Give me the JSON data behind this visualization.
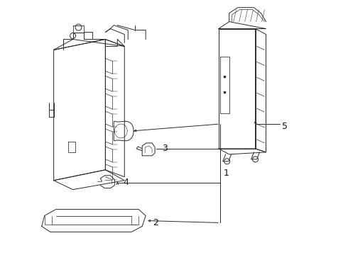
{
  "bg_color": "#ffffff",
  "line_color": "#2a2a2a",
  "lw": 0.7,
  "figsize": [
    4.9,
    3.6
  ],
  "dpi": 100,
  "label_fontsize": 9
}
